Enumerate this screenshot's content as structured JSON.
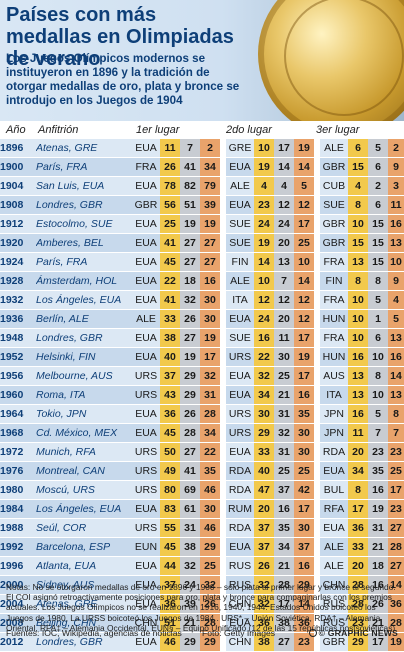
{
  "title": "Países con más medallas en Olimpiadas de verano",
  "intro": "Los Juegos Olímpicos modernos se instituyeron en 1896 y la tradición de otorgar medallas de oro, plata y bronce se introdujo en los Juegos de 1904",
  "columns": {
    "year": "Año",
    "host": "Anfitrión",
    "first": "1er lugar",
    "second": "2do lugar",
    "third": "3er lugar"
  },
  "colors": {
    "gold": "#f2c94c",
    "silver": "#c8ccd2",
    "bronze": "#e9a36b",
    "row_a": "#dce8f4",
    "row_b": "#c7d9ec",
    "title": "#0e3f78"
  },
  "chart_data": {
    "type": "table",
    "columns": [
      "Año",
      "Anfitrión",
      "1er lugar",
      "2do lugar",
      "3er lugar"
    ],
    "rows": [
      {
        "year": "1896",
        "host": "Atenas, GRE",
        "first": {
          "code": "EUA",
          "gold": "11",
          "silver": "7",
          "bronze": "2"
        },
        "second": {
          "code": "GRE",
          "gold": "10",
          "silver": "17",
          "bronze": "19"
        },
        "third": {
          "code": "ALE",
          "gold": "6",
          "silver": "5",
          "bronze": "2"
        }
      },
      {
        "year": "1900",
        "host": "París, FRA",
        "first": {
          "code": "FRA",
          "gold": "26",
          "silver": "41",
          "bronze": "34"
        },
        "second": {
          "code": "EUA",
          "gold": "19",
          "silver": "14",
          "bronze": "14"
        },
        "third": {
          "code": "GBR",
          "gold": "15",
          "silver": "6",
          "bronze": "9"
        }
      },
      {
        "year": "1904",
        "host": "San Luis, EUA",
        "first": {
          "code": "EUA",
          "gold": "78",
          "silver": "82",
          "bronze": "79"
        },
        "second": {
          "code": "ALE",
          "gold": "4",
          "silver": "4",
          "bronze": "5"
        },
        "third": {
          "code": "CUB",
          "gold": "4",
          "silver": "2",
          "bronze": "3"
        }
      },
      {
        "year": "1908",
        "host": "Londres, GBR",
        "first": {
          "code": "GBR",
          "gold": "56",
          "silver": "51",
          "bronze": "39"
        },
        "second": {
          "code": "EUA",
          "gold": "23",
          "silver": "12",
          "bronze": "12"
        },
        "third": {
          "code": "SUE",
          "gold": "8",
          "silver": "6",
          "bronze": "11"
        }
      },
      {
        "year": "1912",
        "host": "Estocolmo, SUE",
        "first": {
          "code": "EUA",
          "gold": "25",
          "silver": "19",
          "bronze": "19"
        },
        "second": {
          "code": "SUE",
          "gold": "24",
          "silver": "24",
          "bronze": "17"
        },
        "third": {
          "code": "GBR",
          "gold": "10",
          "silver": "15",
          "bronze": "16"
        }
      },
      {
        "year": "1920",
        "host": "Amberes, BEL",
        "first": {
          "code": "EUA",
          "gold": "41",
          "silver": "27",
          "bronze": "27"
        },
        "second": {
          "code": "SUE",
          "gold": "19",
          "silver": "20",
          "bronze": "25"
        },
        "third": {
          "code": "GBR",
          "gold": "15",
          "silver": "15",
          "bronze": "13"
        }
      },
      {
        "year": "1924",
        "host": "París, FRA",
        "first": {
          "code": "EUA",
          "gold": "45",
          "silver": "27",
          "bronze": "27"
        },
        "second": {
          "code": "FIN",
          "gold": "14",
          "silver": "13",
          "bronze": "10"
        },
        "third": {
          "code": "FRA",
          "gold": "13",
          "silver": "15",
          "bronze": "10"
        }
      },
      {
        "year": "1928",
        "host": "Ámsterdam, HOL",
        "first": {
          "code": "EUA",
          "gold": "22",
          "silver": "18",
          "bronze": "16"
        },
        "second": {
          "code": "ALE",
          "gold": "10",
          "silver": "7",
          "bronze": "14"
        },
        "third": {
          "code": "FIN",
          "gold": "8",
          "silver": "8",
          "bronze": "9"
        }
      },
      {
        "year": "1932",
        "host": "Los Ángeles, EUA",
        "first": {
          "code": "EUA",
          "gold": "41",
          "silver": "32",
          "bronze": "30"
        },
        "second": {
          "code": "ITA",
          "gold": "12",
          "silver": "12",
          "bronze": "12"
        },
        "third": {
          "code": "FRA",
          "gold": "10",
          "silver": "5",
          "bronze": "4"
        }
      },
      {
        "year": "1936",
        "host": "Berlín, ALE",
        "first": {
          "code": "ALE",
          "gold": "33",
          "silver": "26",
          "bronze": "30"
        },
        "second": {
          "code": "EUA",
          "gold": "24",
          "silver": "20",
          "bronze": "12"
        },
        "third": {
          "code": "HUN",
          "gold": "10",
          "silver": "1",
          "bronze": "5"
        }
      },
      {
        "year": "1948",
        "host": "Londres, GBR",
        "first": {
          "code": "EUA",
          "gold": "38",
          "silver": "27",
          "bronze": "19"
        },
        "second": {
          "code": "SUE",
          "gold": "16",
          "silver": "11",
          "bronze": "17"
        },
        "third": {
          "code": "FRA",
          "gold": "10",
          "silver": "6",
          "bronze": "13"
        }
      },
      {
        "year": "1952",
        "host": "Helsinki, FIN",
        "first": {
          "code": "EUA",
          "gold": "40",
          "silver": "19",
          "bronze": "17"
        },
        "second": {
          "code": "URS",
          "gold": "22",
          "silver": "30",
          "bronze": "19"
        },
        "third": {
          "code": "HUN",
          "gold": "16",
          "silver": "10",
          "bronze": "16"
        }
      },
      {
        "year": "1956",
        "host": "Melbourne, AUS",
        "first": {
          "code": "URS",
          "gold": "37",
          "silver": "29",
          "bronze": "32"
        },
        "second": {
          "code": "EUA",
          "gold": "32",
          "silver": "25",
          "bronze": "17"
        },
        "third": {
          "code": "AUS",
          "gold": "13",
          "silver": "8",
          "bronze": "14"
        }
      },
      {
        "year": "1960",
        "host": "Roma, ITA",
        "first": {
          "code": "URS",
          "gold": "43",
          "silver": "29",
          "bronze": "31"
        },
        "second": {
          "code": "EUA",
          "gold": "34",
          "silver": "21",
          "bronze": "16"
        },
        "third": {
          "code": "ITA",
          "gold": "13",
          "silver": "10",
          "bronze": "13"
        }
      },
      {
        "year": "1964",
        "host": "Tokio, JPN",
        "first": {
          "code": "EUA",
          "gold": "36",
          "silver": "26",
          "bronze": "28"
        },
        "second": {
          "code": "URS",
          "gold": "30",
          "silver": "31",
          "bronze": "35"
        },
        "third": {
          "code": "JPN",
          "gold": "16",
          "silver": "5",
          "bronze": "8"
        }
      },
      {
        "year": "1968",
        "host": "Cd. México, MEX",
        "first": {
          "code": "EUA",
          "gold": "45",
          "silver": "28",
          "bronze": "34"
        },
        "second": {
          "code": "URS",
          "gold": "29",
          "silver": "32",
          "bronze": "30"
        },
        "third": {
          "code": "JPN",
          "gold": "11",
          "silver": "7",
          "bronze": "7"
        }
      },
      {
        "year": "1972",
        "host": "Munich, RFA",
        "first": {
          "code": "URS",
          "gold": "50",
          "silver": "27",
          "bronze": "22"
        },
        "second": {
          "code": "EUA",
          "gold": "33",
          "silver": "31",
          "bronze": "30"
        },
        "third": {
          "code": "RDA",
          "gold": "20",
          "silver": "23",
          "bronze": "23"
        }
      },
      {
        "year": "1976",
        "host": "Montreal, CAN",
        "first": {
          "code": "URS",
          "gold": "49",
          "silver": "41",
          "bronze": "35"
        },
        "second": {
          "code": "RDA",
          "gold": "40",
          "silver": "25",
          "bronze": "25"
        },
        "third": {
          "code": "EUA",
          "gold": "34",
          "silver": "35",
          "bronze": "25"
        }
      },
      {
        "year": "1980",
        "host": "Moscú, URS",
        "first": {
          "code": "URS",
          "gold": "80",
          "silver": "69",
          "bronze": "46"
        },
        "second": {
          "code": "RDA",
          "gold": "47",
          "silver": "37",
          "bronze": "42"
        },
        "third": {
          "code": "BUL",
          "gold": "8",
          "silver": "16",
          "bronze": "17"
        }
      },
      {
        "year": "1984",
        "host": "Los Ángeles, EUA",
        "first": {
          "code": "EUA",
          "gold": "83",
          "silver": "61",
          "bronze": "30"
        },
        "second": {
          "code": "RUM",
          "gold": "20",
          "silver": "16",
          "bronze": "17"
        },
        "third": {
          "code": "RFA",
          "gold": "17",
          "silver": "19",
          "bronze": "23"
        }
      },
      {
        "year": "1988",
        "host": "Seúl, COR",
        "first": {
          "code": "URS",
          "gold": "55",
          "silver": "31",
          "bronze": "46"
        },
        "second": {
          "code": "RDA",
          "gold": "37",
          "silver": "35",
          "bronze": "30"
        },
        "third": {
          "code": "EUA",
          "gold": "36",
          "silver": "31",
          "bronze": "27"
        }
      },
      {
        "year": "1992",
        "host": "Barcelona, ESP",
        "first": {
          "code": "EUN",
          "gold": "45",
          "silver": "38",
          "bronze": "29"
        },
        "second": {
          "code": "EUA",
          "gold": "37",
          "silver": "34",
          "bronze": "37"
        },
        "third": {
          "code": "ALE",
          "gold": "33",
          "silver": "21",
          "bronze": "28"
        }
      },
      {
        "year": "1996",
        "host": "Atlanta, EUA",
        "first": {
          "code": "EUA",
          "gold": "44",
          "silver": "32",
          "bronze": "25"
        },
        "second": {
          "code": "RUS",
          "gold": "26",
          "silver": "21",
          "bronze": "16"
        },
        "third": {
          "code": "ALE",
          "gold": "20",
          "silver": "18",
          "bronze": "27"
        }
      },
      {
        "year": "2000",
        "host": "Sidney, AUS",
        "first": {
          "code": "EUA",
          "gold": "37",
          "silver": "24",
          "bronze": "32"
        },
        "second": {
          "code": "RUS",
          "gold": "32",
          "silver": "28",
          "bronze": "29"
        },
        "third": {
          "code": "CHN",
          "gold": "28",
          "silver": "16",
          "bronze": "14"
        }
      },
      {
        "year": "2004",
        "host": "Atenas, GRE",
        "first": {
          "code": "EUA",
          "gold": "36",
          "silver": "39",
          "bronze": "26"
        },
        "second": {
          "code": "CHN",
          "gold": "32",
          "silver": "17",
          "bronze": "14"
        },
        "third": {
          "code": "RUS",
          "gold": "28",
          "silver": "26",
          "bronze": "36"
        }
      },
      {
        "year": "2008",
        "host": "Beijing, CHN",
        "first": {
          "code": "CHN",
          "gold": "51",
          "silver": "21",
          "bronze": "28"
        },
        "second": {
          "code": "EUA",
          "gold": "36",
          "silver": "38",
          "bronze": "36"
        },
        "third": {
          "code": "RUS",
          "gold": "23",
          "silver": "21",
          "bronze": "28"
        }
      },
      {
        "year": "2012",
        "host": "Londres, GBR",
        "first": {
          "code": "EUA",
          "gold": "46",
          "silver": "29",
          "bronze": "29"
        },
        "second": {
          "code": "CHN",
          "gold": "38",
          "silver": "27",
          "bronze": "23"
        },
        "third": {
          "code": "GBR",
          "gold": "29",
          "silver": "17",
          "bronze": "19"
        }
      }
    ]
  },
  "notes": "Notas: No se otorgaron medallas de oro en 1896 y 1900 – solo plata al primer lugar y bronce al segundo. El COI asignó retroactivamente posiciones para oro, plata y bronce para compaginarlas con los premios actuales. Los Juegos Olímpicos no se realizaron en 1916, 1940, 1944. Estados Unidos boicoteó los Juegos de 1980, La URSS boicoteó los Juegos de 1984 . URS* – Unión Soviética, RDA† – Alemania Oriental, RFA‡ – Alemania Occidental, EUN§ – Equipo Unificado (12 de las 15 repúblicas postsoviéticas)",
  "footer": {
    "sources": "Fuentes: IOC, Wikipedia, agencias de noticias",
    "photo": "Foto: Getty Images",
    "brand": "© GRAPHIC NEWS"
  }
}
